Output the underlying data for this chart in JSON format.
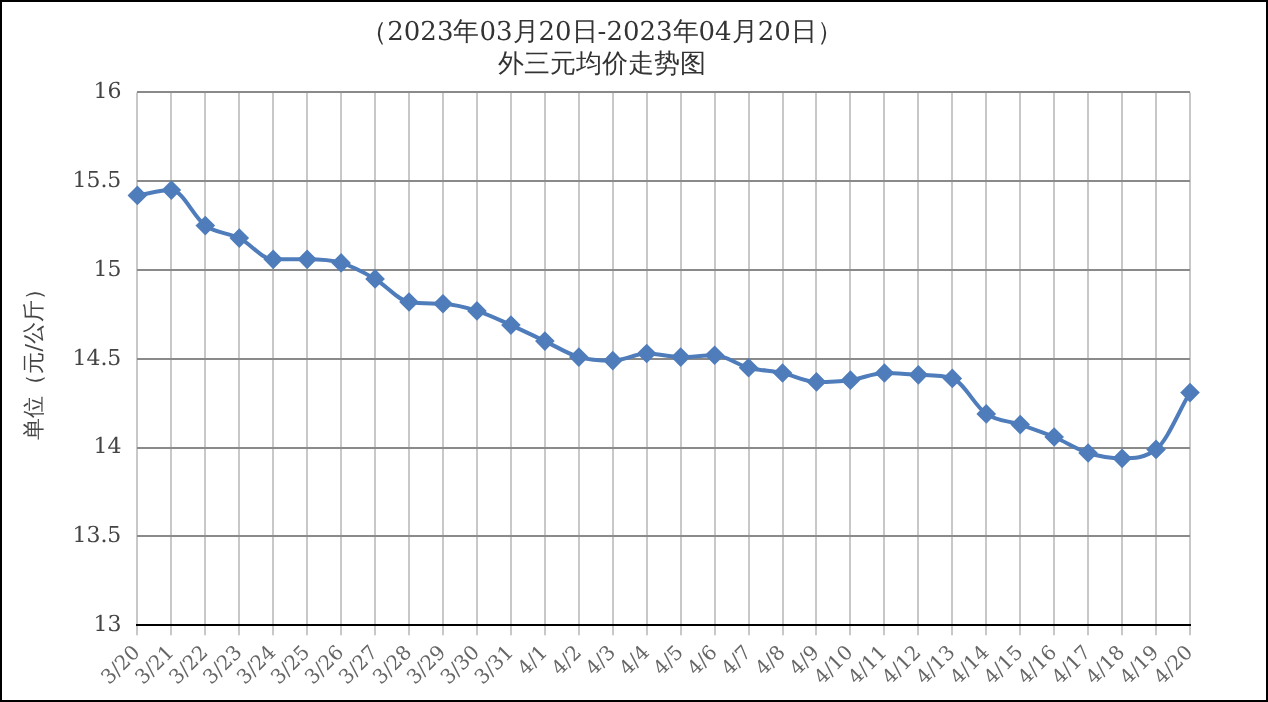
{
  "chart_data": {
    "type": "line",
    "title": "（2023年03月20日-2023年04月20日）",
    "subtitle": "外三元均价走势图",
    "ylabel": "单位（元/公斤）",
    "categories": [
      "3/20",
      "3/21",
      "3/22",
      "3/23",
      "3/24",
      "3/25",
      "3/26",
      "3/27",
      "3/28",
      "3/29",
      "3/30",
      "3/31",
      "4/1",
      "4/2",
      "4/3",
      "4/4",
      "4/5",
      "4/6",
      "4/7",
      "4/8",
      "4/9",
      "4/10",
      "4/11",
      "4/12",
      "4/13",
      "4/14",
      "4/15",
      "4/16",
      "4/17",
      "4/18",
      "4/19",
      "4/20"
    ],
    "series": [
      {
        "color": "#4f7cba",
        "values": [
          15.42,
          15.45,
          15.25,
          15.18,
          15.06,
          15.06,
          15.04,
          14.95,
          14.82,
          14.81,
          14.77,
          14.69,
          14.6,
          14.51,
          14.49,
          14.53,
          14.51,
          14.52,
          14.45,
          14.42,
          14.37,
          14.38,
          14.42,
          14.41,
          14.39,
          14.19,
          14.13,
          14.06,
          13.97,
          13.94,
          13.99,
          14.31
        ]
      }
    ],
    "ylim": [
      13,
      16
    ],
    "yticks": [
      13,
      13.5,
      14,
      14.5,
      15,
      15.5,
      16
    ],
    "grid": true,
    "marker": "diamond",
    "line_style": "solid",
    "legend": false
  }
}
